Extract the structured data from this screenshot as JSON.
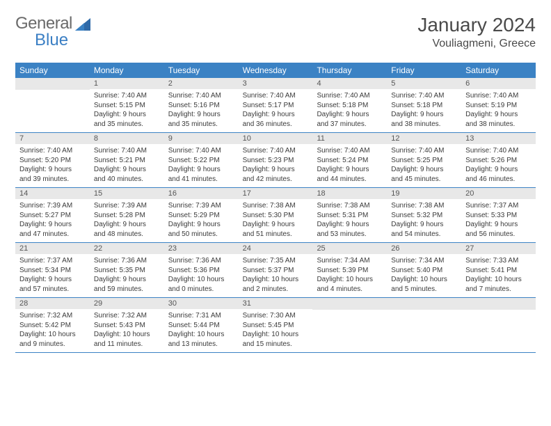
{
  "logo": {
    "text_general": "General",
    "text_blue": "Blue"
  },
  "header": {
    "month_title": "January 2024",
    "location": "Vouliagmeni, Greece"
  },
  "colors": {
    "header_bg": "#3b82c4",
    "header_text": "#ffffff",
    "daynum_bg": "#e8e8e8",
    "body_text": "#3a3a3a",
    "row_border": "#3b82c4"
  },
  "weekdays": [
    "Sunday",
    "Monday",
    "Tuesday",
    "Wednesday",
    "Thursday",
    "Friday",
    "Saturday"
  ],
  "weeks": [
    [
      null,
      {
        "n": "1",
        "sr": "Sunrise: 7:40 AM",
        "ss": "Sunset: 5:15 PM",
        "d1": "Daylight: 9 hours",
        "d2": "and 35 minutes."
      },
      {
        "n": "2",
        "sr": "Sunrise: 7:40 AM",
        "ss": "Sunset: 5:16 PM",
        "d1": "Daylight: 9 hours",
        "d2": "and 35 minutes."
      },
      {
        "n": "3",
        "sr": "Sunrise: 7:40 AM",
        "ss": "Sunset: 5:17 PM",
        "d1": "Daylight: 9 hours",
        "d2": "and 36 minutes."
      },
      {
        "n": "4",
        "sr": "Sunrise: 7:40 AM",
        "ss": "Sunset: 5:18 PM",
        "d1": "Daylight: 9 hours",
        "d2": "and 37 minutes."
      },
      {
        "n": "5",
        "sr": "Sunrise: 7:40 AM",
        "ss": "Sunset: 5:18 PM",
        "d1": "Daylight: 9 hours",
        "d2": "and 38 minutes."
      },
      {
        "n": "6",
        "sr": "Sunrise: 7:40 AM",
        "ss": "Sunset: 5:19 PM",
        "d1": "Daylight: 9 hours",
        "d2": "and 38 minutes."
      }
    ],
    [
      {
        "n": "7",
        "sr": "Sunrise: 7:40 AM",
        "ss": "Sunset: 5:20 PM",
        "d1": "Daylight: 9 hours",
        "d2": "and 39 minutes."
      },
      {
        "n": "8",
        "sr": "Sunrise: 7:40 AM",
        "ss": "Sunset: 5:21 PM",
        "d1": "Daylight: 9 hours",
        "d2": "and 40 minutes."
      },
      {
        "n": "9",
        "sr": "Sunrise: 7:40 AM",
        "ss": "Sunset: 5:22 PM",
        "d1": "Daylight: 9 hours",
        "d2": "and 41 minutes."
      },
      {
        "n": "10",
        "sr": "Sunrise: 7:40 AM",
        "ss": "Sunset: 5:23 PM",
        "d1": "Daylight: 9 hours",
        "d2": "and 42 minutes."
      },
      {
        "n": "11",
        "sr": "Sunrise: 7:40 AM",
        "ss": "Sunset: 5:24 PM",
        "d1": "Daylight: 9 hours",
        "d2": "and 44 minutes."
      },
      {
        "n": "12",
        "sr": "Sunrise: 7:40 AM",
        "ss": "Sunset: 5:25 PM",
        "d1": "Daylight: 9 hours",
        "d2": "and 45 minutes."
      },
      {
        "n": "13",
        "sr": "Sunrise: 7:40 AM",
        "ss": "Sunset: 5:26 PM",
        "d1": "Daylight: 9 hours",
        "d2": "and 46 minutes."
      }
    ],
    [
      {
        "n": "14",
        "sr": "Sunrise: 7:39 AM",
        "ss": "Sunset: 5:27 PM",
        "d1": "Daylight: 9 hours",
        "d2": "and 47 minutes."
      },
      {
        "n": "15",
        "sr": "Sunrise: 7:39 AM",
        "ss": "Sunset: 5:28 PM",
        "d1": "Daylight: 9 hours",
        "d2": "and 48 minutes."
      },
      {
        "n": "16",
        "sr": "Sunrise: 7:39 AM",
        "ss": "Sunset: 5:29 PM",
        "d1": "Daylight: 9 hours",
        "d2": "and 50 minutes."
      },
      {
        "n": "17",
        "sr": "Sunrise: 7:38 AM",
        "ss": "Sunset: 5:30 PM",
        "d1": "Daylight: 9 hours",
        "d2": "and 51 minutes."
      },
      {
        "n": "18",
        "sr": "Sunrise: 7:38 AM",
        "ss": "Sunset: 5:31 PM",
        "d1": "Daylight: 9 hours",
        "d2": "and 53 minutes."
      },
      {
        "n": "19",
        "sr": "Sunrise: 7:38 AM",
        "ss": "Sunset: 5:32 PM",
        "d1": "Daylight: 9 hours",
        "d2": "and 54 minutes."
      },
      {
        "n": "20",
        "sr": "Sunrise: 7:37 AM",
        "ss": "Sunset: 5:33 PM",
        "d1": "Daylight: 9 hours",
        "d2": "and 56 minutes."
      }
    ],
    [
      {
        "n": "21",
        "sr": "Sunrise: 7:37 AM",
        "ss": "Sunset: 5:34 PM",
        "d1": "Daylight: 9 hours",
        "d2": "and 57 minutes."
      },
      {
        "n": "22",
        "sr": "Sunrise: 7:36 AM",
        "ss": "Sunset: 5:35 PM",
        "d1": "Daylight: 9 hours",
        "d2": "and 59 minutes."
      },
      {
        "n": "23",
        "sr": "Sunrise: 7:36 AM",
        "ss": "Sunset: 5:36 PM",
        "d1": "Daylight: 10 hours",
        "d2": "and 0 minutes."
      },
      {
        "n": "24",
        "sr": "Sunrise: 7:35 AM",
        "ss": "Sunset: 5:37 PM",
        "d1": "Daylight: 10 hours",
        "d2": "and 2 minutes."
      },
      {
        "n": "25",
        "sr": "Sunrise: 7:34 AM",
        "ss": "Sunset: 5:39 PM",
        "d1": "Daylight: 10 hours",
        "d2": "and 4 minutes."
      },
      {
        "n": "26",
        "sr": "Sunrise: 7:34 AM",
        "ss": "Sunset: 5:40 PM",
        "d1": "Daylight: 10 hours",
        "d2": "and 5 minutes."
      },
      {
        "n": "27",
        "sr": "Sunrise: 7:33 AM",
        "ss": "Sunset: 5:41 PM",
        "d1": "Daylight: 10 hours",
        "d2": "and 7 minutes."
      }
    ],
    [
      {
        "n": "28",
        "sr": "Sunrise: 7:32 AM",
        "ss": "Sunset: 5:42 PM",
        "d1": "Daylight: 10 hours",
        "d2": "and 9 minutes."
      },
      {
        "n": "29",
        "sr": "Sunrise: 7:32 AM",
        "ss": "Sunset: 5:43 PM",
        "d1": "Daylight: 10 hours",
        "d2": "and 11 minutes."
      },
      {
        "n": "30",
        "sr": "Sunrise: 7:31 AM",
        "ss": "Sunset: 5:44 PM",
        "d1": "Daylight: 10 hours",
        "d2": "and 13 minutes."
      },
      {
        "n": "31",
        "sr": "Sunrise: 7:30 AM",
        "ss": "Sunset: 5:45 PM",
        "d1": "Daylight: 10 hours",
        "d2": "and 15 minutes."
      },
      null,
      null,
      null
    ]
  ]
}
